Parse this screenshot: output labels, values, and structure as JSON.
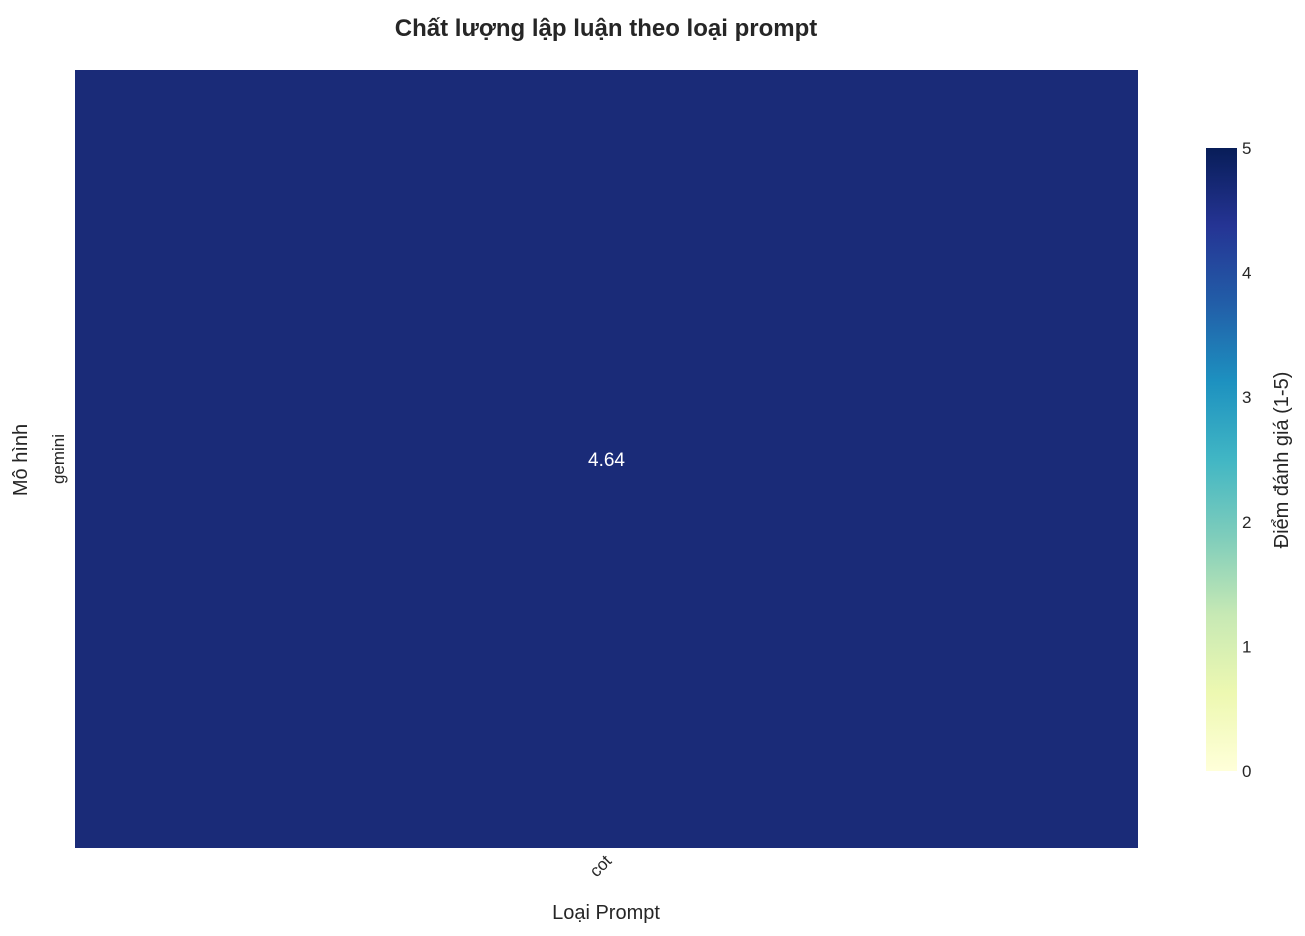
{
  "chart_data": {
    "type": "heatmap",
    "title": "Chất lượng lập luận theo loại prompt",
    "xlabel": "Loại Prompt",
    "ylabel": "Mô hình",
    "x_categories": [
      "cot"
    ],
    "y_categories": [
      "gemini"
    ],
    "values": [
      [
        4.64
      ]
    ],
    "cell_labels": [
      [
        "4.64"
      ]
    ],
    "colorbar": {
      "label": "Điểm đánh giá (1-5)",
      "vmin": 0,
      "vmax": 5,
      "ticks": [
        "0",
        "1",
        "2",
        "3",
        "4",
        "5"
      ],
      "colormap": "YlGnBu",
      "stops": [
        "#ffffd9",
        "#edf8b1",
        "#c7e9b4",
        "#7fcdbb",
        "#41b6c4",
        "#1d91c0",
        "#225ea8",
        "#253494",
        "#081d58"
      ]
    },
    "cell_color": "#1a2b78",
    "grid": false
  }
}
